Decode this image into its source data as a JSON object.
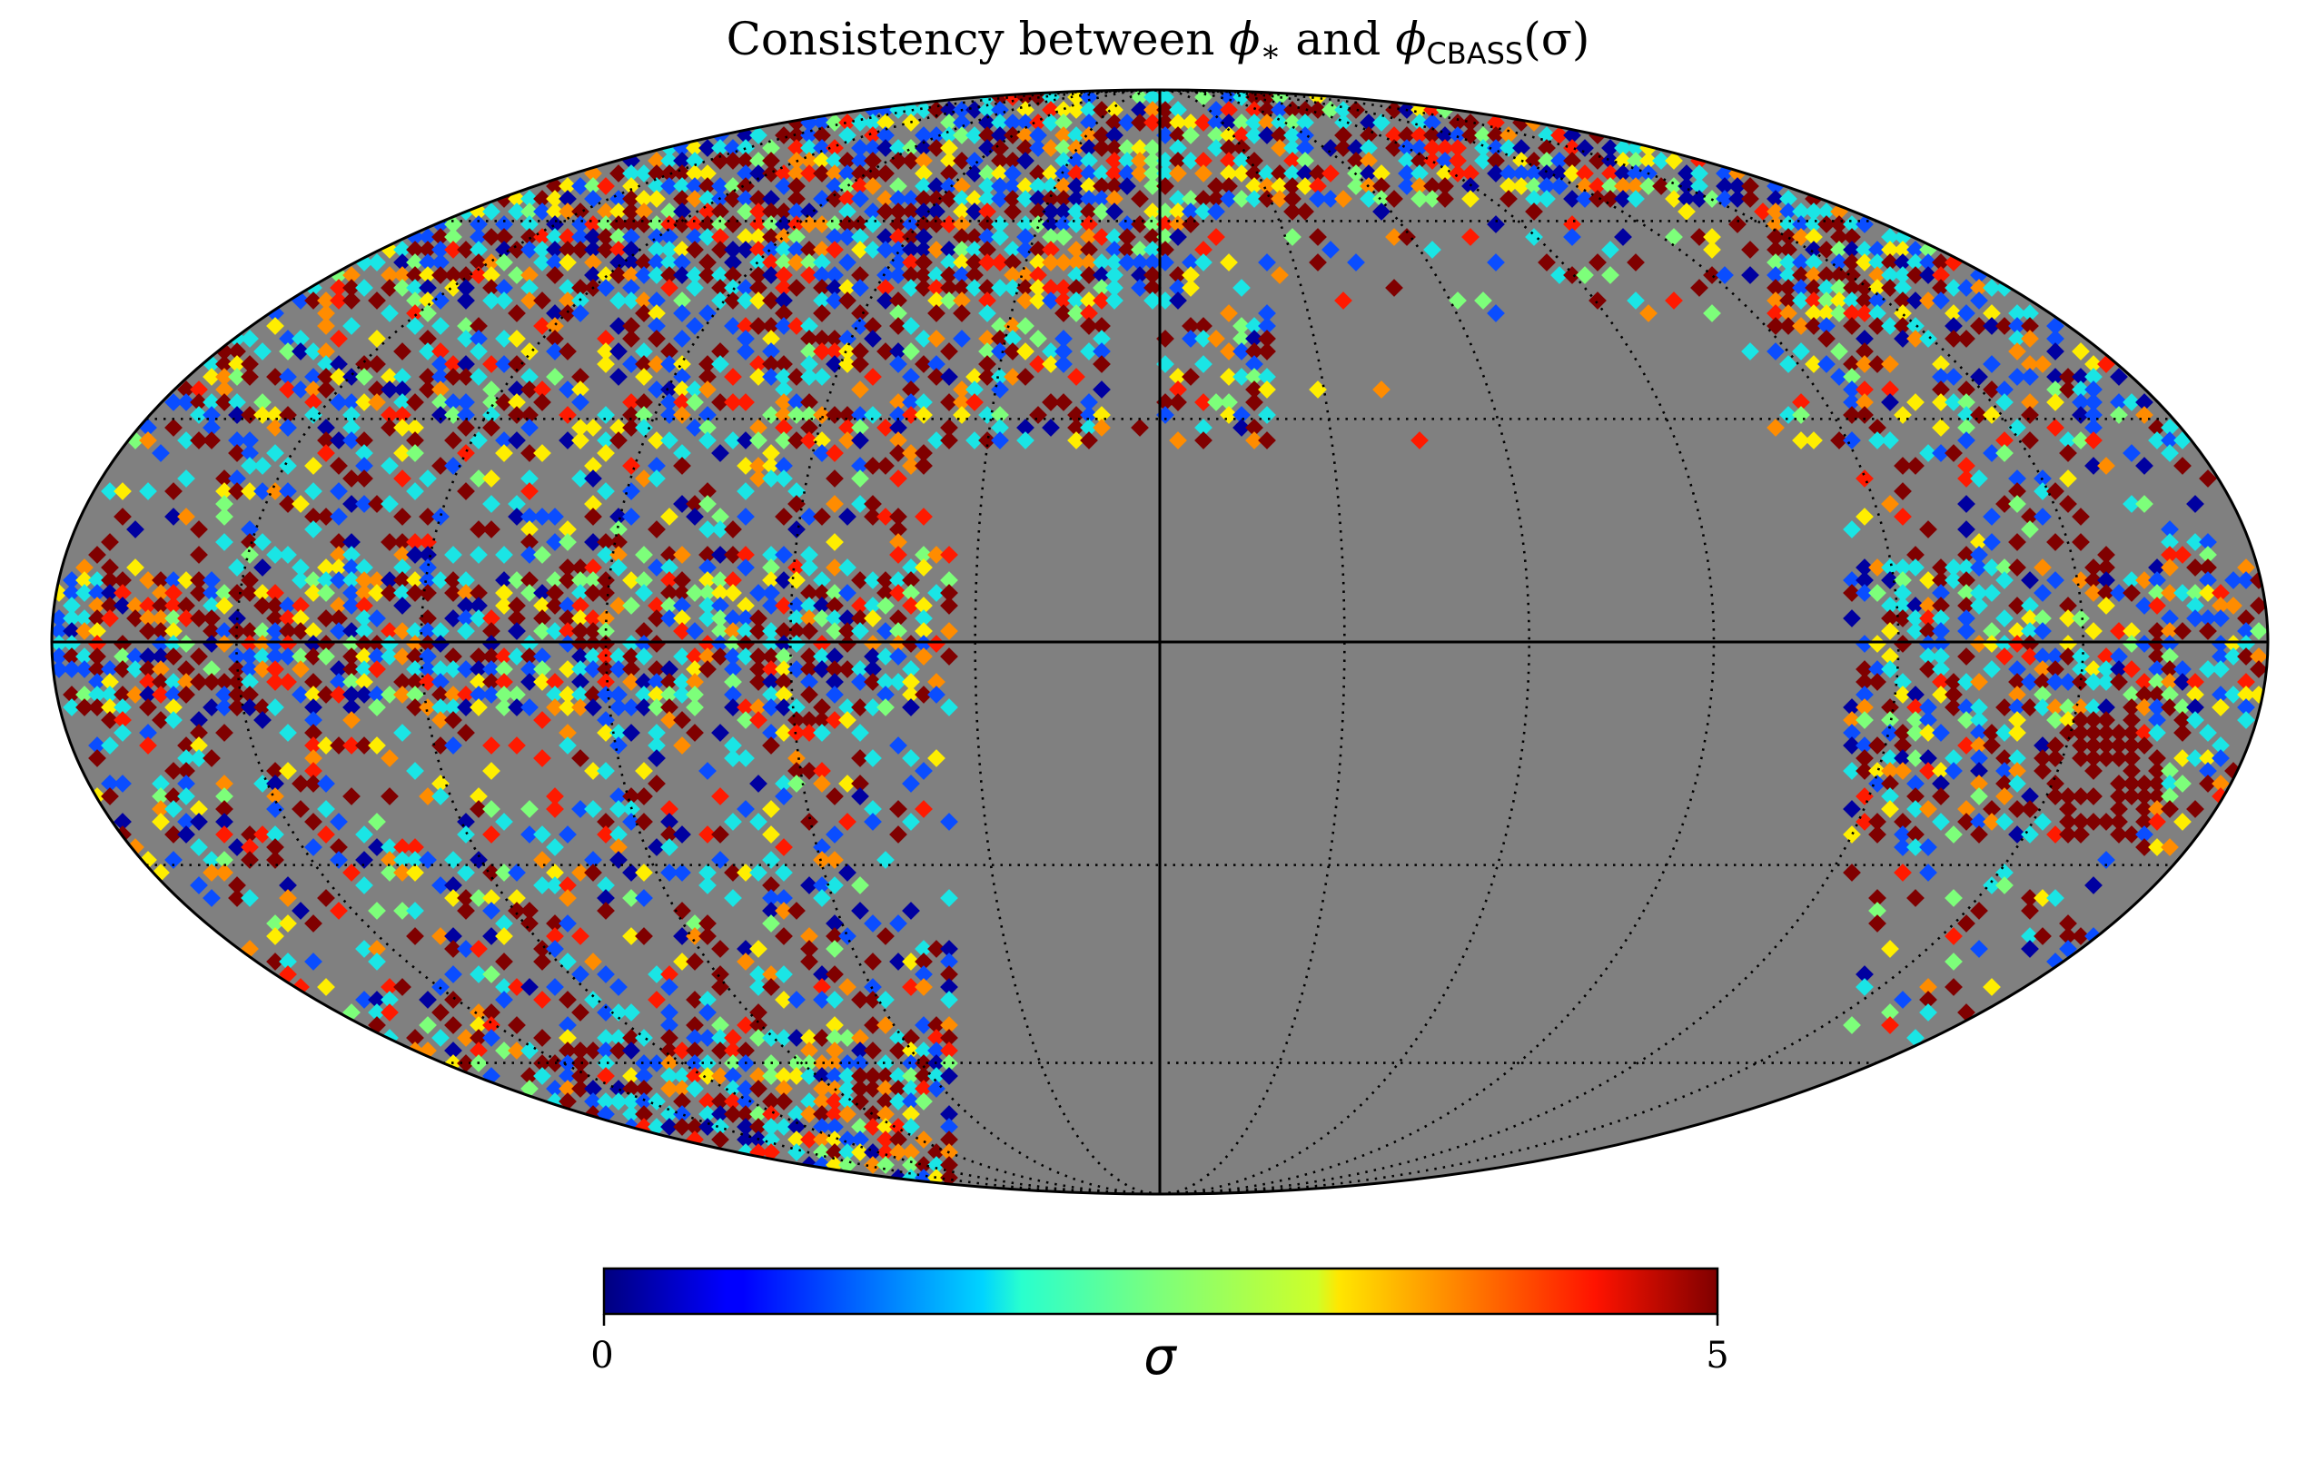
{
  "title_parts": {
    "prefix": "Consistency between ",
    "phi1": "ϕ",
    "star": "∗",
    "middle": " and ",
    "phi2": "ϕ",
    "sub": "CBASS",
    "suffix": "(σ)"
  },
  "chart_data": {
    "type": "heatmap",
    "projection": "mollweide",
    "title": "Consistency between ϕ∗ and ϕCBASS(σ)",
    "colorbar": {
      "label": "σ",
      "min": 0,
      "max": 5,
      "ticks": [
        "0",
        "5"
      ],
      "colormap": "jet",
      "orientation": "horizontal",
      "placement": "bottom"
    },
    "masked_color": "#808080",
    "graticule": {
      "meridian_spacing_deg": 30,
      "parallel_spacing_deg": 30,
      "style": "dotted"
    },
    "colors": {
      "deep_red": "#800000",
      "red": "#ff1a00",
      "orange": "#ff8c00",
      "yellow": "#ffee00",
      "green": "#7dff7a",
      "cyan": "#1ae5e5",
      "blue": "#0a4dff",
      "navy": "#0000a0"
    }
  }
}
